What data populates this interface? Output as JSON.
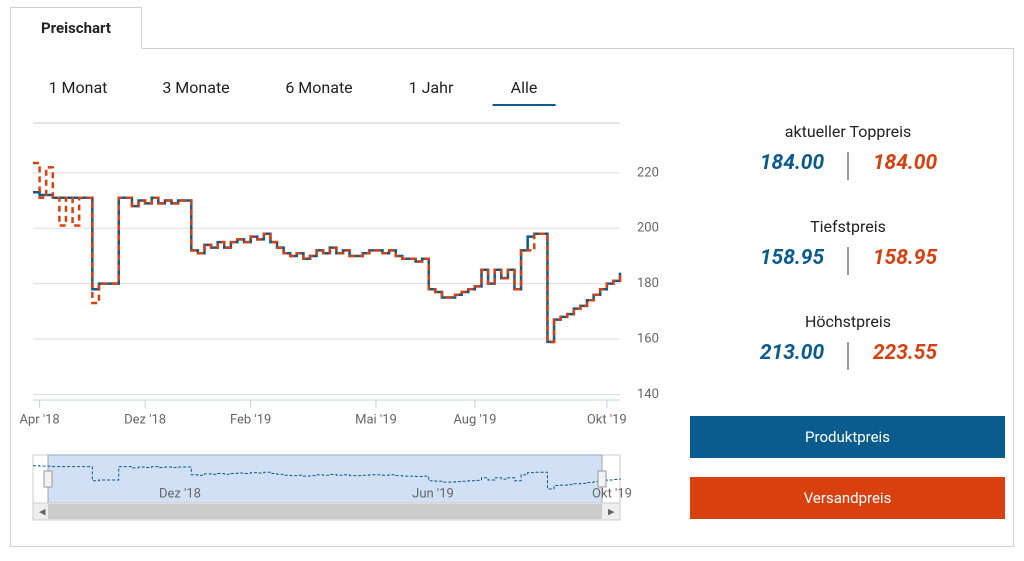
{
  "tab": "Preischart",
  "ranges": [
    "1 Monat",
    "3 Monate",
    "6 Monate",
    "1 Jahr",
    "Alle"
  ],
  "active_range": 4,
  "summary": [
    {
      "label": "aktueller Toppreis",
      "values": [
        "184.00",
        "184.00"
      ]
    },
    {
      "label": "Tiefstpreis",
      "values": [
        "158.95",
        "158.95"
      ]
    },
    {
      "label": "Höchstpreis",
      "values": [
        "213.00",
        "223.55"
      ]
    }
  ],
  "navigator_labels": [
    "Dez '18",
    "Jun '19",
    "Okt '19"
  ],
  "chart_data": {
    "type": "line",
    "categories": [
      null,
      "Apr '18",
      null,
      null,
      null,
      null,
      null,
      null,
      null,
      null,
      null,
      null,
      null,
      null,
      null,
      null,
      null,
      "Dez '18",
      null,
      null,
      null,
      null,
      null,
      null,
      null,
      null,
      null,
      null,
      null,
      null,
      null,
      null,
      null,
      "Feb '19",
      null,
      null,
      null,
      null,
      null,
      null,
      null,
      null,
      null,
      null,
      null,
      null,
      null,
      null,
      null,
      null,
      null,
      null,
      "Mai '19",
      null,
      null,
      null,
      null,
      null,
      null,
      null,
      null,
      null,
      null,
      null,
      null,
      null,
      null,
      "Aug '19",
      null,
      null,
      null,
      null,
      null,
      null,
      null,
      null,
      null,
      null,
      null,
      null,
      null,
      null,
      null,
      null,
      null,
      null,
      null,
      "Okt '19",
      null,
      null
    ],
    "series": [
      {
        "name": "Produktpreis",
        "color": "#0b5c8e",
        "dash": false,
        "values": [
          213,
          212,
          212,
          211,
          211,
          211,
          211,
          211,
          211,
          178,
          180,
          180,
          180,
          211,
          211,
          208,
          210,
          209,
          211,
          209,
          210,
          209,
          210,
          210,
          192,
          191,
          194,
          193,
          195,
          193,
          195,
          196,
          195,
          197,
          196,
          198,
          195,
          193,
          191,
          190,
          191,
          189,
          190,
          192,
          191,
          193,
          191,
          192,
          190,
          190,
          191,
          192,
          192,
          191,
          192,
          190,
          189,
          189,
          188,
          189,
          178,
          177,
          175,
          175,
          176,
          177,
          178,
          179,
          185,
          180,
          185,
          182,
          185,
          178,
          192,
          197,
          198,
          198,
          159,
          167,
          168,
          169,
          171,
          172,
          174,
          176,
          178,
          180,
          181,
          184
        ]
      },
      {
        "name": "Versandpreis",
        "color": "#d9400f",
        "dash": true,
        "values": [
          223.55,
          211,
          222,
          211,
          201,
          211,
          201,
          211,
          211,
          173,
          180,
          180,
          180,
          211,
          211,
          208,
          210,
          209,
          211,
          209,
          210,
          209,
          210,
          210,
          192,
          191,
          194,
          193,
          195,
          193,
          195,
          196,
          195,
          197,
          196,
          198,
          195,
          193,
          191,
          190,
          191,
          189,
          190,
          192,
          191,
          193,
          191,
          192,
          190,
          190,
          191,
          192,
          192,
          191,
          192,
          190,
          189,
          189,
          188,
          189,
          178,
          177,
          175,
          175,
          176,
          177,
          178,
          179,
          185,
          180,
          185,
          182,
          185,
          178,
          192,
          192,
          198,
          198,
          158.95,
          167,
          168,
          169,
          171,
          172,
          174,
          176,
          178,
          180,
          181,
          184
        ]
      }
    ],
    "ylim": [
      138,
      238
    ],
    "yticks": [
      140,
      160,
      180,
      200,
      220
    ],
    "grid": true
  }
}
